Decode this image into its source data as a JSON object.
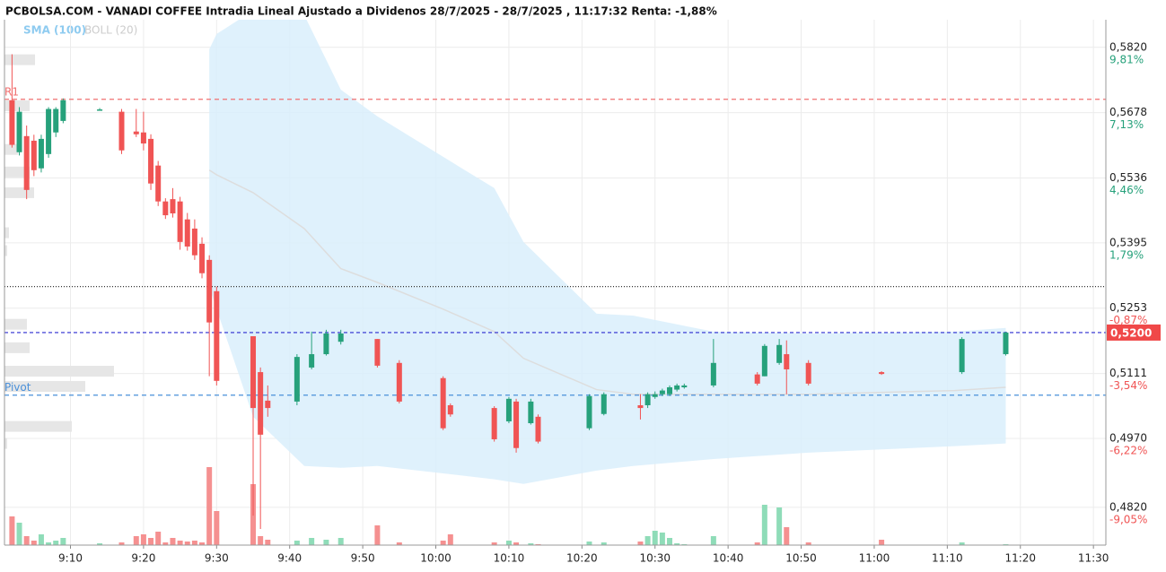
{
  "chart_data": {
    "type": "candlestick",
    "title": "PCBOLSA.COM - VANADI COFFEE Intradia Lineal Ajustado a Dividenos 28/7/2025 - 28/7/2025 , 11:17:32 Renta: -1,88%",
    "legend": [
      {
        "name": "SMA (100)",
        "color": "#8ecbf0"
      },
      {
        "name": "BOLL (20)",
        "color": "#cccccc"
      }
    ],
    "up_color": "#26a17b",
    "down_color": "#f05454",
    "volume_up_color": "#8fdcb8",
    "volume_down_color": "#f59090",
    "x": [
      2,
      3,
      4,
      5,
      6,
      7,
      8,
      9,
      14,
      17,
      19,
      20,
      21,
      22,
      23,
      24,
      25,
      26,
      27,
      28,
      29,
      30,
      35,
      36,
      37,
      41,
      43,
      45,
      47,
      52,
      55,
      61,
      62,
      68,
      70,
      71,
      73,
      74,
      81,
      83,
      88,
      89,
      90,
      91,
      92,
      93,
      94,
      98,
      104,
      105,
      107,
      108,
      111,
      121,
      132,
      138
    ],
    "open": [
      0.5705,
      0.5592,
      0.5627,
      0.5617,
      0.5557,
      0.5588,
      0.5635,
      0.566,
      0.5684,
      0.568,
      0.5637,
      0.5635,
      0.5621,
      0.5563,
      0.5485,
      0.549,
      0.5485,
      0.5446,
      0.5426,
      0.5393,
      0.5358,
      0.529,
      0.5192,
      0.5114,
      0.5052,
      0.505,
      0.5124,
      0.5153,
      0.518,
      0.5186,
      0.5134,
      0.5101,
      0.5042,
      0.5036,
      0.5007,
      0.505,
      0.5003,
      0.5017,
      0.4992,
      0.5023,
      0.5042,
      0.5042,
      0.506,
      0.5066,
      0.5066,
      0.5076,
      0.5081,
      0.5085,
      0.5109,
      0.5105,
      0.5134,
      0.5153,
      0.5134,
      0.5114,
      0.5114,
      0.5153
    ],
    "high": [
      0.5805,
      0.569,
      0.565,
      0.563,
      0.563,
      0.569,
      0.569,
      0.5709,
      0.5688,
      0.5686,
      0.5686,
      0.568,
      0.5631,
      0.5573,
      0.5492,
      0.5514,
      0.5495,
      0.546,
      0.5446,
      0.5407,
      0.5368,
      0.53,
      0.5192,
      0.5124,
      0.5085,
      0.5153,
      0.5202,
      0.5206,
      0.5206,
      0.5186,
      0.514,
      0.5105,
      0.5046,
      0.504,
      0.506,
      0.5056,
      0.5056,
      0.5022,
      0.5066,
      0.507,
      0.5066,
      0.507,
      0.5072,
      0.5078,
      0.5085,
      0.5089,
      0.5089,
      0.5186,
      0.5114,
      0.5175,
      0.5186,
      0.5183,
      0.514,
      0.5116,
      0.519,
      0.5202
    ],
    "low": [
      0.5602,
      0.5585,
      0.549,
      0.554,
      0.5548,
      0.558,
      0.5625,
      0.5655,
      0.5684,
      0.5588,
      0.5625,
      0.5596,
      0.551,
      0.5475,
      0.5447,
      0.545,
      0.538,
      0.5378,
      0.5358,
      0.5318,
      0.5105,
      0.5085,
      0.4802,
      0.4773,
      0.5017,
      0.5042,
      0.512,
      0.515,
      0.5174,
      0.5124,
      0.5046,
      0.4988,
      0.5017,
      0.4963,
      0.5003,
      0.4939,
      0.5,
      0.4959,
      0.4988,
      0.502,
      0.5011,
      0.5036,
      0.5056,
      0.5062,
      0.5062,
      0.5072,
      0.5078,
      0.5081,
      0.5085,
      0.5105,
      0.513,
      0.5066,
      0.5085,
      0.5108,
      0.511,
      0.515
    ],
    "close": [
      0.5608,
      0.568,
      0.551,
      0.5553,
      0.5621,
      0.5686,
      0.5686,
      0.5705,
      0.5685,
      0.5596,
      0.5631,
      0.5611,
      0.5524,
      0.5485,
      0.5455,
      0.5459,
      0.5397,
      0.5387,
      0.5368,
      0.5329,
      0.5222,
      0.5095,
      0.5036,
      0.4978,
      0.5036,
      0.5147,
      0.5153,
      0.5198,
      0.5198,
      0.5128,
      0.505,
      0.4992,
      0.5022,
      0.4968,
      0.5056,
      0.4949,
      0.505,
      0.4963,
      0.5062,
      0.5066,
      0.5036,
      0.5066,
      0.5066,
      0.5074,
      0.5081,
      0.5085,
      0.5085,
      0.5134,
      0.5089,
      0.5171,
      0.5173,
      0.512,
      0.5089,
      0.511,
      0.5186,
      0.52
    ],
    "volume": [
      32,
      25,
      10,
      5,
      12,
      3,
      5,
      8,
      2,
      3,
      10,
      12,
      8,
      15,
      3,
      8,
      5,
      4,
      5,
      3,
      87,
      38,
      68,
      10,
      6,
      5,
      8,
      6,
      8,
      22,
      3,
      5,
      12,
      3,
      5,
      3,
      2,
      1,
      4,
      3,
      4,
      10,
      16,
      14,
      8,
      2,
      1,
      10,
      3,
      45,
      42,
      20,
      3,
      6,
      3,
      1
    ],
    "volume_ylim": [
      0,
      100
    ],
    "boll": {
      "x": [
        29,
        30,
        35,
        42,
        47,
        52,
        61,
        68,
        72,
        82,
        87,
        98,
        111,
        131,
        138
      ],
      "upper": [
        0.5816,
        0.5849,
        0.59,
        0.589,
        0.5728,
        0.567,
        0.5582,
        0.5514,
        0.5397,
        0.5241,
        0.5237,
        0.5202,
        0.5198,
        0.5202,
        0.521
      ],
      "middle": [
        0.5553,
        0.5543,
        0.5504,
        0.5426,
        0.5339,
        0.5309,
        0.5251,
        0.5202,
        0.5144,
        0.5076,
        0.5066,
        0.5066,
        0.5066,
        0.5074,
        0.5081
      ],
      "lower": [
        0.53,
        0.5251,
        0.5017,
        0.491,
        0.4906,
        0.491,
        0.4894,
        0.4881,
        0.4871,
        0.49,
        0.491,
        0.4925,
        0.4939,
        0.4953,
        0.4959
      ]
    },
    "volume_profile": {
      "prices": [
        0.5793,
        0.5693,
        0.5598,
        0.5549,
        0.5504,
        0.5417,
        0.5378,
        0.5218,
        0.5167,
        0.5116,
        0.5083,
        0.4996,
        0.4959
      ],
      "values": [
        34,
        28,
        15,
        28,
        33,
        5,
        3,
        25,
        28,
        122,
        90,
        75,
        3
      ]
    },
    "reference_price": 0.53,
    "lines": [
      {
        "label": "R1",
        "value": 0.5707,
        "color": "#f07070",
        "dash": "5,4"
      },
      {
        "label": "Pivot",
        "value": 0.5064,
        "color": "#4a90d9",
        "dash": "5,4"
      },
      {
        "value": 0.52,
        "color": "#2a2ad0",
        "dash": "4,3"
      },
      {
        "value": 0.53,
        "color": "#333333",
        "dash": "1,2"
      }
    ],
    "last_price": {
      "value": 0.52,
      "label": "0,5200",
      "color": "#f04848"
    },
    "xlim": [
      0.97,
      151.7
    ],
    "xticks": [
      {
        "value": 10,
        "label": "9:10"
      },
      {
        "value": 20,
        "label": "9:20"
      },
      {
        "value": 30,
        "label": "9:30"
      },
      {
        "value": 40,
        "label": "9:40"
      },
      {
        "value": 50,
        "label": "9:50"
      },
      {
        "value": 60,
        "label": "10:00"
      },
      {
        "value": 70,
        "label": "10:10"
      },
      {
        "value": 80,
        "label": "10:20"
      },
      {
        "value": 90,
        "label": "10:30"
      },
      {
        "value": 100,
        "label": "10:40"
      },
      {
        "value": 110,
        "label": "10:50"
      },
      {
        "value": 120,
        "label": "11:00"
      },
      {
        "value": 130,
        "label": "11:10"
      },
      {
        "value": 140,
        "label": "11:20"
      },
      {
        "value": 150,
        "label": "11:30"
      }
    ],
    "ylim": [
      0.4738,
      0.588
    ],
    "yticks": [
      {
        "value": 0.582,
        "label": "0,5820"
      },
      {
        "value": 0.5678,
        "label": "0,5678"
      },
      {
        "value": 0.5536,
        "label": "0,5536"
      },
      {
        "value": 0.5395,
        "label": "0,5395"
      },
      {
        "value": 0.5253,
        "label": "0,5253"
      },
      {
        "value": 0.5111,
        "label": "0,5111"
      },
      {
        "value": 0.497,
        "label": "0,4970"
      },
      {
        "value": 0.482,
        "label": "0,4820"
      }
    ],
    "ytick_pct_labels": [
      "9,81%",
      "7,13%",
      "4,46%",
      "1,79%",
      "-0,87%",
      "-3,54%",
      "-6,22%",
      "-9,05%"
    ],
    "grid": true
  }
}
